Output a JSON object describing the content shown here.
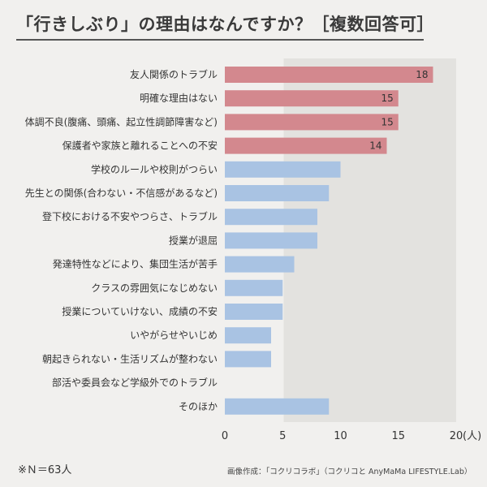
{
  "title": "「行きしぶり」の理由はなんですか？［複数回答可］",
  "note": "※Ｎ＝63人",
  "credit": "画像作成：「コクリコラボ」（コクリコと AnyMaMa LIFESTYLE.Lab）",
  "colors": {
    "highlight": "#d3888e",
    "normal": "#a9c3e3",
    "shade": "#e3e2df",
    "background": "#f1f0ee"
  },
  "chart_data": {
    "type": "bar",
    "orientation": "horizontal",
    "xlim": [
      0,
      20
    ],
    "ticks": [
      "0",
      "5",
      "10",
      "15",
      "20"
    ],
    "unit": "(人)",
    "categories": [
      "友人関係のトラブル",
      "明確な理由はない",
      "体調不良(腹痛、頭痛、起立性調節障害など)",
      "保護者や家族と離れることへの不安",
      "学校のルールや校則がつらい",
      "先生との関係(合わない・不信感があるなど)",
      "登下校における不安やつらさ、トラブル",
      "授業が退屈",
      "発達特性などにより、集団生活が苦手",
      "クラスの雰囲気になじめない",
      "授業についていけない、成績の不安",
      "いやがらせやいじめ",
      "朝起きられない・生活リズムが整わない",
      "部活や委員会など学級外でのトラブル",
      "そのほか"
    ],
    "values": [
      18,
      15,
      15,
      14,
      10,
      9,
      8,
      8,
      6,
      5,
      5,
      4,
      4,
      0,
      9
    ],
    "data_labels": [
      "18",
      "15",
      "15",
      "14",
      "",
      "",
      "",
      "",
      "",
      "",
      "",
      "",
      "",
      "",
      ""
    ],
    "highlight_top": 4,
    "grid": false
  }
}
